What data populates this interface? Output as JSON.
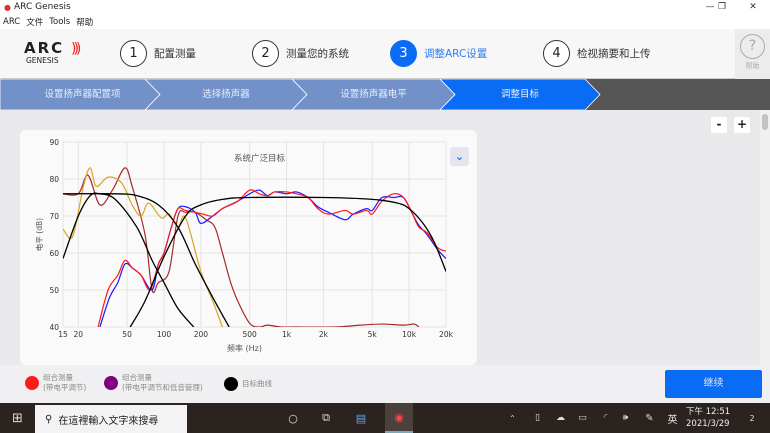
{
  "window": {
    "title": "ARC Genesis",
    "controls": [
      "—",
      "❐",
      "✕"
    ]
  },
  "menu": [
    "ARC",
    "文件",
    "Tools",
    "帮助"
  ],
  "logo": {
    "line1": "ARC",
    "line2": "GENESIS"
  },
  "steps": [
    {
      "num": "1",
      "label": "配置测量"
    },
    {
      "num": "2",
      "label": "测量您的系统"
    },
    {
      "num": "3",
      "label": "调整ARC设置",
      "active": true
    },
    {
      "num": "4",
      "label": "检视摘要和上传"
    }
  ],
  "help": {
    "icon": "?",
    "label": "帮助"
  },
  "breadcrumbs": [
    {
      "label": "设置扬声器配置项"
    },
    {
      "label": "选择扬声器"
    },
    {
      "label": "设置扬声器电平"
    },
    {
      "label": "调整目标",
      "active": true
    }
  ],
  "colors": {
    "accent": "#0a6cf5",
    "crumb": "#7291c9",
    "red": "#ff1a1a",
    "blue": "#1a1aff",
    "brown": "#a52a2a",
    "gold": "#d9a521",
    "black": "#000000",
    "purple": "#800080"
  },
  "zoom": {
    "minus": "-",
    "plus": "+"
  },
  "dropdown_icon": "chevron-down-icon",
  "chart_data": {
    "type": "line",
    "title": "系统广泛目标",
    "xlabel": "频率 (Hz)",
    "ylabel": "电平 (dB)",
    "xscale": "log",
    "xlim": [
      15,
      20000
    ],
    "ylim": [
      40,
      90
    ],
    "grid": true,
    "xticks": [
      {
        "v": 15,
        "l": "15"
      },
      {
        "v": 20,
        "l": "20"
      },
      {
        "v": 50,
        "l": "50"
      },
      {
        "v": 100,
        "l": "100"
      },
      {
        "v": 200,
        "l": "200"
      },
      {
        "v": 500,
        "l": "500"
      },
      {
        "v": 1000,
        "l": "1k"
      },
      {
        "v": 2000,
        "l": "2k"
      },
      {
        "v": 5000,
        "l": "5k"
      },
      {
        "v": 10000,
        "l": "10k"
      },
      {
        "v": 20000,
        "l": "20k"
      }
    ],
    "yticks": [
      40,
      50,
      60,
      70,
      80,
      90
    ],
    "series": [
      {
        "color": "#a52a2a",
        "points": [
          [
            15,
            76
          ],
          [
            20,
            76
          ],
          [
            24,
            81
          ],
          [
            30,
            73
          ],
          [
            38,
            77
          ],
          [
            48,
            83
          ],
          [
            55,
            78
          ],
          [
            70,
            65
          ],
          [
            80,
            50
          ],
          [
            90,
            52
          ],
          [
            110,
            55
          ],
          [
            130,
            70
          ],
          [
            150,
            71
          ],
          [
            180,
            71
          ],
          [
            220,
            69
          ],
          [
            260,
            67
          ],
          [
            300,
            60
          ],
          [
            350,
            52
          ],
          [
            400,
            47
          ],
          [
            500,
            41
          ],
          [
            600,
            40
          ],
          [
            700,
            40.5
          ],
          [
            900,
            40
          ],
          [
            1200,
            40
          ],
          [
            2500,
            40
          ],
          [
            4000,
            40.5
          ],
          [
            6000,
            40.8
          ],
          [
            9000,
            40.5
          ],
          [
            11000,
            40.8
          ],
          [
            12000,
            40
          ]
        ]
      },
      {
        "color": "#d9a521",
        "points": [
          [
            15,
            66.5
          ],
          [
            18,
            64.5
          ],
          [
            22,
            78
          ],
          [
            25,
            83
          ],
          [
            28,
            78
          ],
          [
            35,
            80.5
          ],
          [
            45,
            79
          ],
          [
            55,
            73
          ],
          [
            65,
            70
          ],
          [
            75,
            73.5
          ],
          [
            95,
            69.5
          ],
          [
            110,
            70.5
          ],
          [
            130,
            67
          ],
          [
            150,
            69.5
          ],
          [
            200,
            55
          ],
          [
            250,
            47
          ],
          [
            300,
            40
          ]
        ]
      },
      {
        "color": "#1a1aff",
        "points": [
          [
            30,
            40
          ],
          [
            36,
            48
          ],
          [
            42,
            52
          ],
          [
            48,
            57
          ],
          [
            55,
            56
          ],
          [
            65,
            54
          ],
          [
            80,
            50
          ],
          [
            90,
            57
          ],
          [
            100,
            60
          ],
          [
            115,
            67
          ],
          [
            130,
            72
          ],
          [
            150,
            72.5
          ],
          [
            180,
            71
          ],
          [
            200,
            68
          ],
          [
            250,
            70
          ],
          [
            300,
            72
          ],
          [
            400,
            74
          ],
          [
            500,
            76
          ],
          [
            600,
            77
          ],
          [
            700,
            75.5
          ],
          [
            800,
            76.5
          ],
          [
            1000,
            76
          ],
          [
            1200,
            76.5
          ],
          [
            1500,
            75
          ],
          [
            1800,
            72.5
          ],
          [
            2200,
            71
          ],
          [
            3000,
            69
          ],
          [
            3500,
            70.5
          ],
          [
            4500,
            72
          ],
          [
            5000,
            71.5
          ],
          [
            6000,
            75
          ],
          [
            7500,
            75
          ],
          [
            9000,
            75
          ],
          [
            10500,
            71
          ],
          [
            12000,
            67.5
          ],
          [
            14000,
            65
          ],
          [
            17000,
            61
          ],
          [
            20000,
            58.5
          ]
        ]
      },
      {
        "color": "#ff1a1a",
        "points": [
          [
            29,
            40
          ],
          [
            35,
            50
          ],
          [
            42,
            54
          ],
          [
            48,
            58
          ],
          [
            55,
            56
          ],
          [
            65,
            54
          ],
          [
            77,
            50
          ],
          [
            90,
            57
          ],
          [
            100,
            60
          ],
          [
            115,
            67
          ],
          [
            130,
            72
          ],
          [
            150,
            71.5
          ],
          [
            180,
            71
          ],
          [
            210,
            70.5
          ],
          [
            250,
            70
          ],
          [
            300,
            72
          ],
          [
            400,
            74
          ],
          [
            500,
            77
          ],
          [
            600,
            76
          ],
          [
            700,
            75.5
          ],
          [
            800,
            76.5
          ],
          [
            1000,
            76.5
          ],
          [
            1200,
            76
          ],
          [
            1500,
            75
          ],
          [
            1800,
            72
          ],
          [
            2200,
            70.5
          ],
          [
            3000,
            71.5
          ],
          [
            3500,
            70.5
          ],
          [
            4500,
            71.5
          ],
          [
            5000,
            70.5
          ],
          [
            6000,
            74
          ],
          [
            7500,
            76
          ],
          [
            9000,
            75
          ],
          [
            10500,
            71
          ],
          [
            12000,
            67
          ],
          [
            14000,
            65.5
          ],
          [
            17000,
            61.5
          ],
          [
            20000,
            60.5
          ]
        ]
      },
      {
        "color": "#000000",
        "points": [
          [
            15,
            76
          ],
          [
            40,
            76
          ],
          [
            60,
            75.5
          ],
          [
            90,
            73
          ],
          [
            130,
            67
          ],
          [
            180,
            57
          ],
          [
            250,
            48
          ],
          [
            340,
            40
          ]
        ]
      },
      {
        "color": "#000000",
        "points": [
          [
            15,
            58.5
          ],
          [
            20,
            70
          ],
          [
            25,
            75.5
          ],
          [
            30,
            76
          ],
          [
            40,
            74.5
          ],
          [
            60,
            67
          ],
          [
            80,
            58
          ],
          [
            100,
            52
          ],
          [
            130,
            45
          ],
          [
            175,
            40
          ]
        ]
      },
      {
        "color": "#000000",
        "points": [
          [
            53,
            40
          ],
          [
            70,
            47
          ],
          [
            100,
            59
          ],
          [
            150,
            70
          ],
          [
            200,
            73
          ],
          [
            300,
            74.5
          ],
          [
            500,
            75
          ],
          [
            2000,
            75
          ],
          [
            5000,
            74.5
          ],
          [
            8000,
            73.5
          ],
          [
            10000,
            72
          ],
          [
            13000,
            68
          ],
          [
            16000,
            63
          ],
          [
            20000,
            55
          ]
        ]
      }
    ]
  },
  "legend": [
    {
      "color": "#ff1a1a",
      "line1": "组合测量",
      "line2": "(带电平调节)"
    },
    {
      "color": "#800080",
      "line1": "组合测量",
      "line2": "(带电平调节和低音管理)"
    },
    {
      "color": "#000000",
      "line1": "目标曲线",
      "line2": ""
    }
  ],
  "continue_label": "继续",
  "taskbar": {
    "search_placeholder": "在這裡輸入文字來搜尋",
    "ime": "英",
    "time": "下午 12:51",
    "date": "2021/3/29",
    "notif": "2"
  }
}
